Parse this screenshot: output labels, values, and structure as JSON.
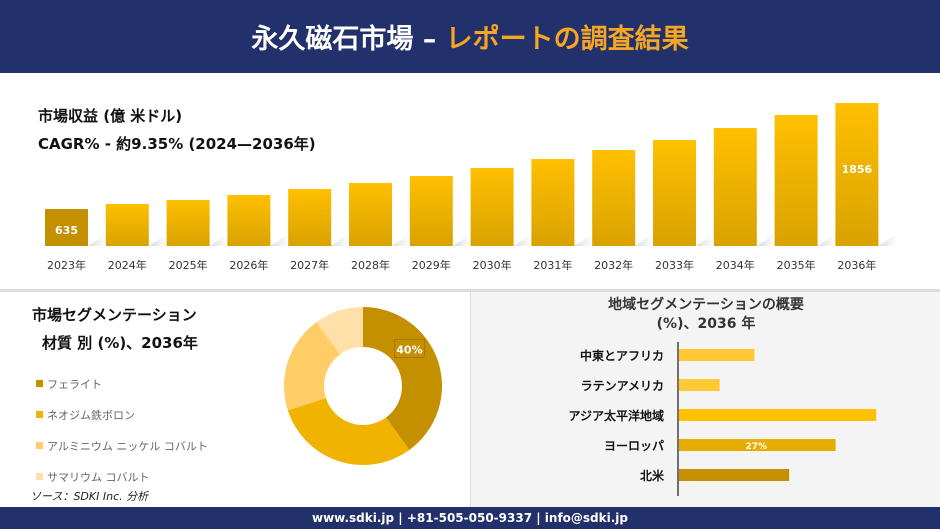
{
  "header": {
    "title_main": "永久磁石市場 –",
    "title_accent": "レポートの調査結果"
  },
  "colors": {
    "navy": "#22306b",
    "accent": "#f5a623",
    "gold_dark": "#c49000",
    "gold": "#e6ac00",
    "gold_light": "#ffc000"
  },
  "chart_data": [
    {
      "type": "bar",
      "title": "市場収益 (億 米ドル)",
      "subtitle": "CAGR% - 約9.35% (2024—2036年)",
      "categories": [
        "2023年",
        "2024年",
        "2025年",
        "2026年",
        "2027年",
        "2028年",
        "2029年",
        "2030年",
        "2031年",
        "2032年",
        "2033年",
        "2034年",
        "2035年",
        "2036年"
      ],
      "values": [
        635,
        693,
        739,
        797,
        866,
        935,
        1015,
        1108,
        1211,
        1315,
        1430,
        1568,
        1718,
        1856
      ],
      "data_labels": {
        "0": "635",
        "13": "1856"
      },
      "grid": false
    },
    {
      "type": "pie",
      "variant": "donut",
      "title": "市場セグメンテーション",
      "subtitle": "材質 別 (%)、2036年",
      "labels": [
        "フェライト",
        "ネオジム鉄ボロン",
        "アルミニウム ニッケル コバルト",
        "サマリウム コバルト"
      ],
      "values": [
        40,
        30,
        20,
        10
      ],
      "colors": [
        "#c49000",
        "#f0b400",
        "#ffcc66",
        "#ffe0a8"
      ],
      "data_labels": {
        "0": "40%"
      },
      "legend": "left"
    },
    {
      "type": "bar",
      "orientation": "horizontal",
      "title": "地域セグメンテーションの概要 (%)、2036 年",
      "categories": [
        "中東とアフリカ",
        "ラテンアメリカ",
        "アジア太平洋地域",
        "ヨーロッパ",
        "北米"
      ],
      "values": [
        13,
        7,
        34,
        27,
        19
      ],
      "colors": [
        "#ffc933",
        "#ffc933",
        "#ffc000",
        "#e6ac00",
        "#c49000"
      ],
      "data_labels": {
        "3": "27%"
      }
    }
  ],
  "source": "ソース：SDKI Inc. 分析",
  "footer": "www.sdki.jp | +81-505-050-9337 | info@sdki.jp"
}
